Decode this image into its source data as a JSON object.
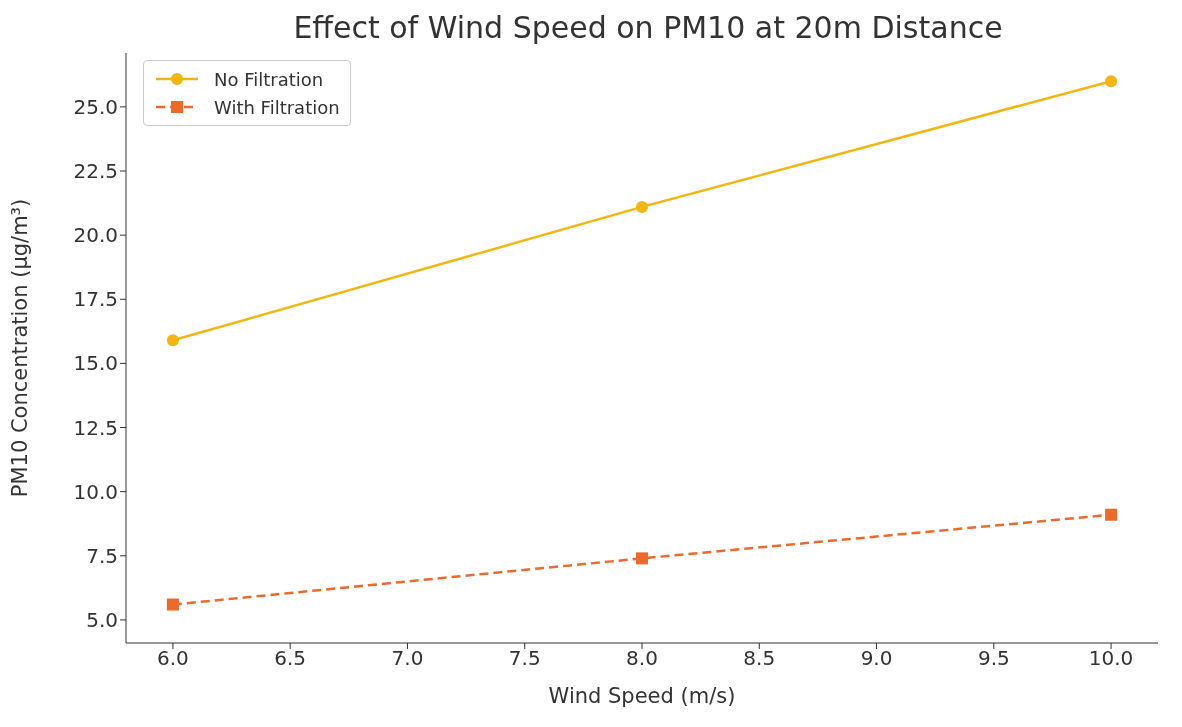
{
  "chart_data": {
    "type": "line",
    "title": "Effect of Wind Speed on PM10 at 20m Distance",
    "xlabel": "Wind Speed (m/s)",
    "ylabel": "PM10 Concentration (µg/m³)",
    "x": [
      6,
      8,
      10
    ],
    "series": [
      {
        "name": "No Filtration",
        "color": "#f5b510",
        "values": [
          15.9,
          21.1,
          26.0
        ],
        "marker": "circle",
        "line_style": "solid"
      },
      {
        "name": "With Filtration",
        "color": "#ec6a2c",
        "values": [
          5.6,
          7.4,
          9.1
        ],
        "marker": "square",
        "line_style": "dashed"
      }
    ],
    "xlim": [
      5.8,
      10.2
    ],
    "xticks": [
      {
        "value": 6,
        "label": "6.0"
      },
      {
        "value": 6.5,
        "label": "6.5"
      },
      {
        "value": 7,
        "label": "7.0"
      },
      {
        "value": 7.5,
        "label": "7.5"
      },
      {
        "value": 8,
        "label": "8.0"
      },
      {
        "value": 8.5,
        "label": "8.5"
      },
      {
        "value": 9,
        "label": "9.0"
      },
      {
        "value": 9.5,
        "label": "9.5"
      },
      {
        "value": 10,
        "label": "10.0"
      }
    ],
    "ylim": [
      4.1,
      27.1
    ],
    "yticks": [
      {
        "value": 5,
        "label": "5.0"
      },
      {
        "value": 7.5,
        "label": "7.5"
      },
      {
        "value": 10,
        "label": "10.0"
      },
      {
        "value": 12.5,
        "label": "12.5"
      },
      {
        "value": 15,
        "label": "15.0"
      },
      {
        "value": 17.5,
        "label": "17.5"
      },
      {
        "value": 20,
        "label": "20.0"
      },
      {
        "value": 22.5,
        "label": "22.5"
      },
      {
        "value": 25,
        "label": "25.0"
      }
    ],
    "grid": false,
    "legend": "top left"
  }
}
